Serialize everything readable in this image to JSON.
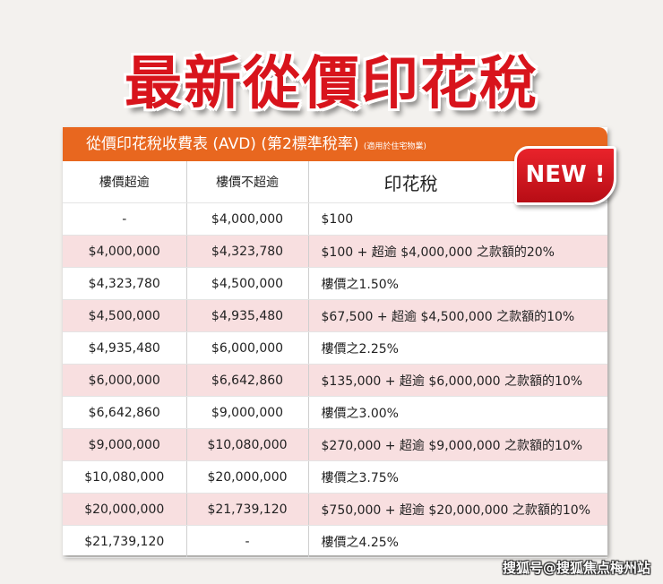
{
  "title": "最新從價印花稅",
  "table_caption": "從價印花稅收費表 (AVD) (第2標準稅率)",
  "table_caption_note": "(適用於住宅物業)",
  "badge": "NEW !",
  "headers": [
    "樓價超逾",
    "樓價不超逾",
    "印花稅"
  ],
  "rows": [
    [
      "-",
      "$4,000,000",
      "$100"
    ],
    [
      "$4,000,000",
      "$4,323,780",
      "$100 + 超逾 $4,000,000 之款額的20%"
    ],
    [
      "$4,323,780",
      "$4,500,000",
      "樓價之1.50%"
    ],
    [
      "$4,500,000",
      "$4,935,480",
      "$67,500 + 超逾 $4,500,000 之款額的10%"
    ],
    [
      "$4,935,480",
      "$6,000,000",
      "樓價之2.25%"
    ],
    [
      "$6,000,000",
      "$6,642,860",
      "$135,000 + 超逾 $6,000,000 之款額的10%"
    ],
    [
      "$6,642,860",
      "$9,000,000",
      "樓價之3.00%"
    ],
    [
      "$9,000,000",
      "$10,080,000",
      "$270,000 + 超逾 $9,000,000 之款額的10%"
    ],
    [
      "$10,080,000",
      "$20,000,000",
      "樓價之3.75%"
    ],
    [
      "$20,000,000",
      "$21,739,120",
      "$750,000 + 超逾 $20,000,000 之款額的10%"
    ],
    [
      "$21,739,120",
      "-",
      "樓價之4.25%"
    ]
  ],
  "watermark": "搜狐号@搜狐焦点梅州站",
  "colors": {
    "title": "#d8141c",
    "band": "#e8671f",
    "pink_row": "#f8dfe0",
    "badge": "#d8141c"
  }
}
